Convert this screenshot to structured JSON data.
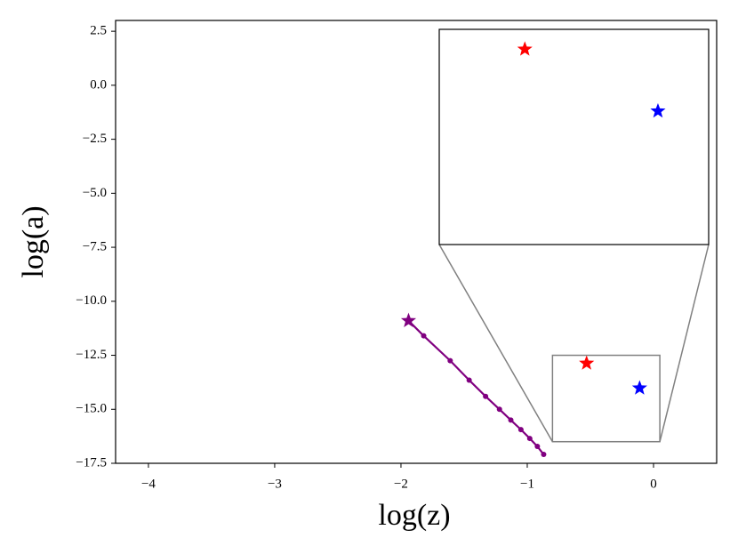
{
  "chart_data": {
    "type": "line",
    "x_label": "log(z)",
    "y_label": "log(a)",
    "xlim": [
      -4.26,
      0.5
    ],
    "ylim": [
      -17.5,
      3.0
    ],
    "xticks": [
      {
        "value": -4,
        "label": "−4"
      },
      {
        "value": -3,
        "label": "−3"
      },
      {
        "value": -2,
        "label": "−2"
      },
      {
        "value": -1,
        "label": "−1"
      },
      0
    ],
    "yticks": [
      {
        "value": 2.5,
        "label": "2.5"
      },
      {
        "value": 0,
        "label": "0.0"
      },
      {
        "value": -2.5,
        "label": "−2.5"
      },
      {
        "value": -5,
        "label": "−5.0"
      },
      {
        "value": -7.5,
        "label": "−7.5"
      },
      {
        "value": -10,
        "label": "−10.0"
      },
      {
        "value": -12.5,
        "label": "−12.5"
      },
      {
        "value": -15,
        "label": "−15.0"
      },
      {
        "value": -17.5,
        "label": "−17.5"
      }
    ],
    "grid": false,
    "series": [
      {
        "color": "purple",
        "marker": "circle",
        "first_marker": "star",
        "line": true,
        "x": [
          -1.94,
          -1.82,
          -1.61,
          -1.46,
          -1.33,
          -1.22,
          -1.13,
          -1.05,
          -0.98,
          -0.92,
          -0.87
        ],
        "values": [
          -10.9,
          -11.6,
          -12.75,
          -13.65,
          -14.4,
          -15.0,
          -15.5,
          -15.94,
          -16.35,
          -16.72,
          -17.09
        ]
      },
      {
        "color": "red",
        "marker": "star",
        "line": false,
        "x": [
          -0.53
        ],
        "values": [
          -12.87
        ]
      },
      {
        "color": "blue",
        "marker": "star",
        "line": false,
        "x": [
          -0.11
        ],
        "values": [
          -14.02
        ]
      }
    ],
    "inset": {
      "xlim": [
        -0.8,
        0.05
      ],
      "ylim": [
        -16.5,
        -12.5
      ],
      "series": [
        1,
        2
      ]
    }
  }
}
